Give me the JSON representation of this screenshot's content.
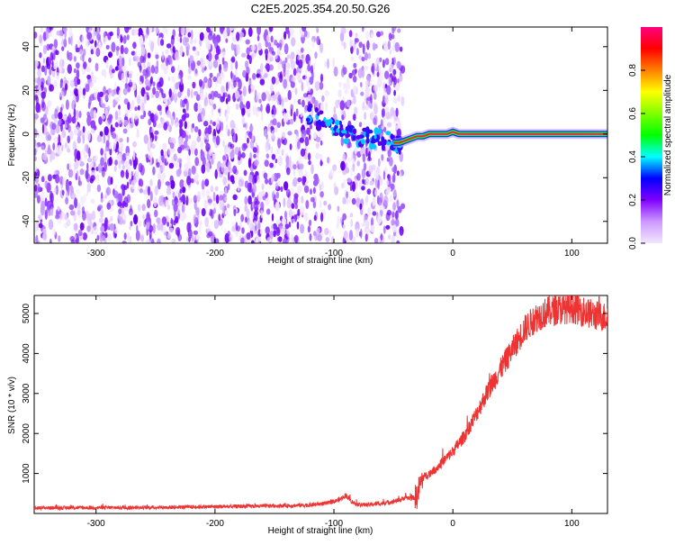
{
  "title": "C2E5.2025.354.20.50.G26",
  "chart_data": [
    {
      "type": "heatmap",
      "name": "spectrogram",
      "xlabel": "Height of straight line (km)",
      "ylabel": "Frequency (Hz)",
      "xlim": [
        -352,
        130
      ],
      "ylim": [
        -50,
        49
      ],
      "xticks": [
        -300,
        -200,
        -100,
        0,
        100
      ],
      "yticks": [
        -40,
        -20,
        0,
        20,
        40
      ],
      "noise_region_km": [
        -352,
        -42
      ],
      "gap_region_km": [
        -110,
        -93
      ],
      "signal_track": {
        "x": [
          -118,
          -110,
          -102,
          -95,
          -88,
          -80,
          -72,
          -64,
          -56,
          -50,
          -45,
          -40,
          -35,
          -30,
          -25,
          -20,
          -15,
          -10,
          -5,
          0,
          5,
          10,
          20,
          40,
          60,
          80,
          100,
          130
        ],
        "y": [
          9,
          6,
          4,
          2,
          0,
          -1,
          -2,
          -2,
          -3,
          -4,
          -4,
          -3,
          -2,
          -1,
          -1,
          0,
          0,
          0,
          0,
          1,
          0,
          0,
          0,
          0,
          0,
          0,
          0,
          0
        ]
      },
      "colorbar": {
        "label": "Normalized spectral amplitude",
        "range": [
          0,
          1
        ],
        "ticks": [
          "0.0",
          "0.2",
          "0.4",
          "0.6",
          "0.8"
        ],
        "colors": [
          "#f2e6ff",
          "#cc99ff",
          "#8000ff",
          "#0000ff",
          "#00ffff",
          "#00ff00",
          "#80ff00",
          "#ffff00",
          "#ff8000",
          "#ff0000",
          "#ff0080"
        ]
      }
    },
    {
      "type": "line",
      "name": "snr",
      "xlabel": "Height of straight line (km)",
      "ylabel": "SNR (10 * v/v)",
      "xlim": [
        -352,
        130
      ],
      "ylim": [
        0,
        5450
      ],
      "xticks": [
        -300,
        -200,
        -100,
        0,
        100
      ],
      "yticks": [
        1000,
        2000,
        3000,
        4000,
        5000
      ],
      "color": "#ee3333",
      "series": {
        "x": [
          -352,
          -300,
          -250,
          -200,
          -150,
          -120,
          -105,
          -100,
          -95,
          -90,
          -85,
          -80,
          -70,
          -60,
          -50,
          -45,
          -40,
          -35,
          -30,
          -28,
          -25,
          -20,
          -15,
          -10,
          -5,
          0,
          10,
          20,
          30,
          40,
          50,
          60,
          70,
          80,
          90,
          100,
          110,
          120,
          130
        ],
        "y": [
          140,
          145,
          150,
          170,
          190,
          210,
          260,
          300,
          350,
          460,
          300,
          220,
          220,
          250,
          300,
          330,
          400,
          380,
          420,
          700,
          900,
          1000,
          1100,
          1250,
          1400,
          1550,
          1950,
          2500,
          3100,
          3600,
          4100,
          4600,
          4900,
          5050,
          5100,
          5150,
          5050,
          4950,
          4900
        ]
      }
    }
  ]
}
